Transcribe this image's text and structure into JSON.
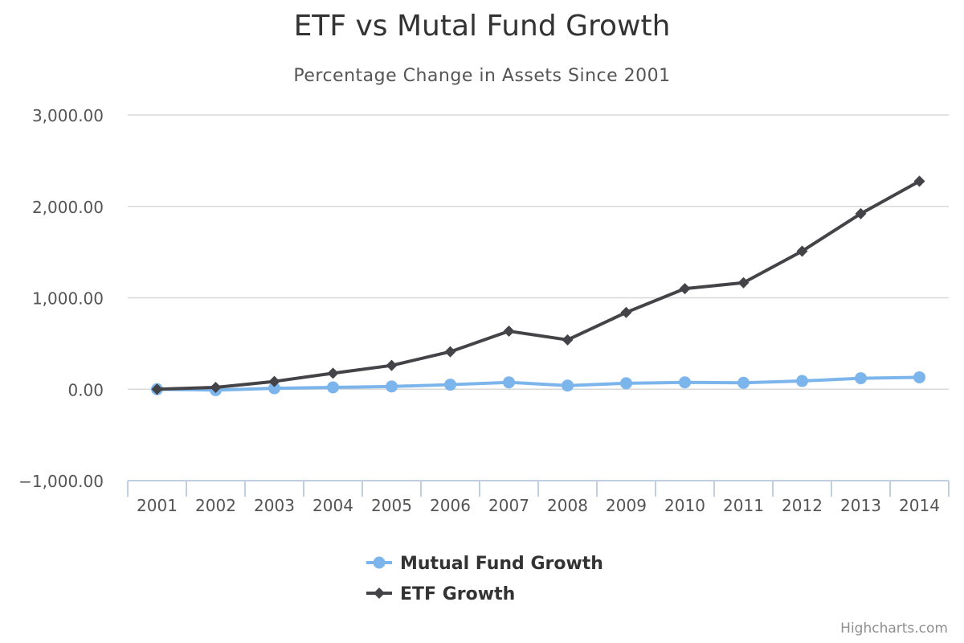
{
  "title": "ETF vs Mutal Fund Growth",
  "subtitle": "Percentage Change in Assets Since 2001",
  "credits": "Highcharts.com",
  "chart_data": {
    "type": "line",
    "title": "ETF vs Mutal Fund Growth",
    "subtitle": "Percentage Change in Assets Since 2001",
    "xlabel": "",
    "ylabel": "",
    "categories": [
      "2001",
      "2002",
      "2003",
      "2004",
      "2005",
      "2006",
      "2007",
      "2008",
      "2009",
      "2010",
      "2011",
      "2012",
      "2013",
      "2014"
    ],
    "ylim": [
      -1000,
      3000
    ],
    "yticks": [
      -1000,
      0,
      1000,
      2000,
      3000
    ],
    "ytick_labels": [
      "−1,000.00",
      "0.00",
      "1,000.00",
      "2,000.00",
      "3,000.00"
    ],
    "grid": true,
    "legend_position": "bottom-center",
    "series": [
      {
        "name": "Mutual Fund Growth",
        "color": "#7cb5ec",
        "marker": "circle",
        "values": [
          0,
          -10,
          10,
          20,
          30,
          50,
          75,
          40,
          65,
          75,
          70,
          90,
          120,
          130
        ]
      },
      {
        "name": "ETF Growth",
        "color": "#434348",
        "marker": "diamond",
        "values": [
          0,
          20,
          85,
          175,
          260,
          410,
          635,
          540,
          840,
          1100,
          1165,
          1510,
          1920,
          2275
        ]
      }
    ]
  }
}
